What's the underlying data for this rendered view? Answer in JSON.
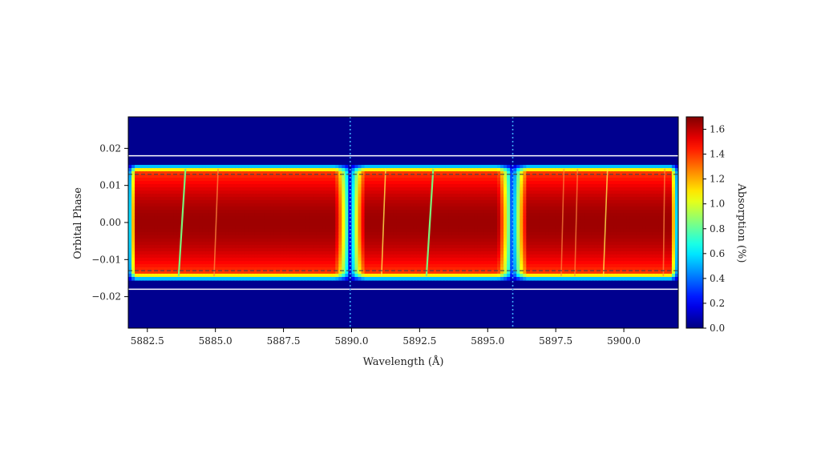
{
  "chart_data": {
    "type": "heatmap",
    "title": "",
    "xlabel": "Wavelength (Å)",
    "ylabel": "Orbital Phase",
    "colorbar_label": "Absorption (%)",
    "colormap": "jet",
    "xlim": [
      5881.8,
      5902.0
    ],
    "ylim": [
      -0.0285,
      0.0285
    ],
    "clim": [
      0.0,
      1.7
    ],
    "x_ticks": [
      5882.5,
      5885.0,
      5887.5,
      5890.0,
      5892.5,
      5895.0,
      5897.5,
      5900.0
    ],
    "x_tick_labels": [
      "5882.5",
      "5885.0",
      "5887.5",
      "5890.0",
      "5892.5",
      "5895.0",
      "5897.5",
      "5900.0"
    ],
    "y_ticks": [
      0.02,
      0.01,
      0.0,
      -0.01,
      -0.02
    ],
    "y_tick_labels": [
      "0.02",
      "0.01",
      "0.00",
      "−0.01",
      "−0.02"
    ],
    "colorbar_ticks": [
      1.6,
      1.4,
      1.2,
      1.0,
      0.8,
      0.6,
      0.4,
      0.2,
      0.0
    ],
    "colorbar_tick_labels": [
      "1.6",
      "1.4",
      "1.2",
      "1.0",
      "0.8",
      "0.6",
      "0.4",
      "0.2",
      "0.0"
    ],
    "transit_phase_range": [
      -0.016,
      0.016
    ],
    "solid_lines_phase": [
      0.018,
      -0.018
    ],
    "dashed_lines_phase": [
      0.013,
      -0.013
    ],
    "dotted_lines_wavelength": [
      5889.95,
      5895.92
    ],
    "absorption_gaps_wavelength": [
      5889.95,
      5895.92
    ],
    "peak_absorption": 1.65,
    "bright_streaks": [
      {
        "x_top": 5883.9,
        "x_bottom": 5883.65,
        "strength": 1.0
      },
      {
        "x_top": 5885.1,
        "x_bottom": 5884.95,
        "strength": 0.45
      },
      {
        "x_top": 5891.25,
        "x_bottom": 5891.1,
        "strength": 0.6
      },
      {
        "x_top": 5893.0,
        "x_bottom": 5892.75,
        "strength": 1.0
      },
      {
        "x_top": 5897.8,
        "x_bottom": 5897.7,
        "strength": 0.3
      },
      {
        "x_top": 5898.3,
        "x_bottom": 5898.2,
        "strength": 0.3
      },
      {
        "x_top": 5899.4,
        "x_bottom": 5899.25,
        "strength": 0.6
      },
      {
        "x_top": 5901.5,
        "x_bottom": 5901.45,
        "strength": 0.35
      }
    ]
  }
}
